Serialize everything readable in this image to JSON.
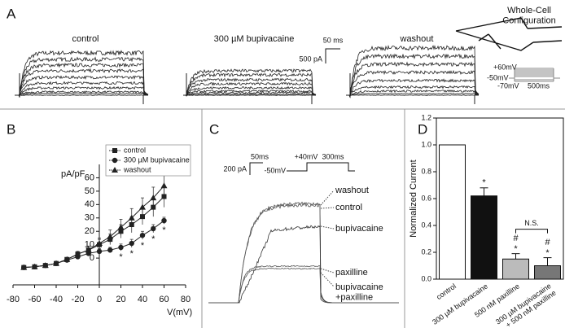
{
  "panel_a": {
    "letter": "A",
    "conditions": [
      "control",
      "300 µM bupivacaine",
      "washout"
    ],
    "scale_time": "50 ms",
    "scale_current": "500 pA",
    "config_label": "Whole-Cell\nConfiguration",
    "protocol_labels": [
      "+60mV",
      "-50mV",
      "-70mV",
      "500ms"
    ]
  },
  "panel_c": {
    "letter": "C",
    "scale_time": "50ms",
    "scale_current": "200 pA",
    "protocol_labels": [
      "+40mV",
      "-50mV",
      "300ms"
    ],
    "trace_labels": [
      "washout",
      "control",
      "bupivacaine",
      "paxilline",
      "bupivacaine\n+paxilline"
    ]
  },
  "chart_data": [
    {
      "type": "line",
      "panel": "B",
      "ylabel": "pA/pF",
      "xlabel": "V(mV)",
      "x": [
        -70,
        -60,
        -50,
        -40,
        -30,
        -20,
        -10,
        0,
        10,
        20,
        30,
        40,
        50,
        60
      ],
      "xlim": [
        -80,
        80
      ],
      "xticks": [
        -80,
        -60,
        -40,
        -20,
        0,
        20,
        40,
        60,
        80
      ],
      "ylim": [
        -20,
        70
      ],
      "yticks": [
        0,
        10,
        20,
        30,
        40,
        50,
        60
      ],
      "legend": "upper left",
      "series": [
        {
          "name": "control",
          "color": "#222222",
          "marker": "square",
          "values": [
            -7,
            -6.5,
            -5.5,
            -4,
            -1,
            3,
            6,
            10,
            14,
            20,
            25,
            31,
            38,
            46
          ],
          "errors": [
            0.5,
            0.5,
            0.5,
            0.8,
            1,
            2,
            3,
            4,
            4,
            5,
            6,
            6,
            7,
            8
          ]
        },
        {
          "name": "300 µM bupivacaine",
          "color": "#222222",
          "marker": "circle",
          "values": [
            -7,
            -6.5,
            -5.5,
            -4,
            -1.5,
            1,
            3.5,
            5,
            6,
            8,
            11,
            17,
            22,
            28
          ],
          "errors": [
            0.5,
            0.5,
            0.5,
            0.8,
            1,
            1.5,
            2,
            2,
            2,
            2.5,
            3,
            3,
            3,
            2.5
          ],
          "annotations": [
            null,
            null,
            null,
            null,
            null,
            null,
            null,
            null,
            null,
            "*",
            "*",
            "*",
            "*",
            "*"
          ]
        },
        {
          "name": "washout",
          "color": "#222222",
          "marker": "triangle",
          "values": [
            -7,
            -6.5,
            -5.5,
            -4,
            -1,
            3,
            6,
            11,
            16,
            23,
            30,
            38,
            45,
            54
          ],
          "errors": [
            0.5,
            0.5,
            0.5,
            0.8,
            1,
            2,
            3,
            4,
            5,
            6,
            7,
            7,
            8,
            8
          ]
        }
      ]
    },
    {
      "type": "bar",
      "panel": "D",
      "ylabel": "Normalized Current",
      "categories": [
        "control",
        "300 µM bupivacaine",
        "500 nM paxilline",
        "300 µM bupivacaine\n+ 500 nM paxilline"
      ],
      "values": [
        1.0,
        0.62,
        0.15,
        0.1
      ],
      "errors": [
        0,
        0.06,
        0.04,
        0.06
      ],
      "colors": [
        "#ffffff",
        "#111111",
        "#bbbbbb",
        "#777777"
      ],
      "annotations": [
        null,
        "*",
        "#\n*",
        "#\n*"
      ],
      "bracket_label": "N.S.",
      "ylim": [
        0,
        1.2
      ],
      "yticks": [
        {
          "value": 0,
          "label": "0.0"
        },
        0.2,
        0.4,
        0.6,
        0.8,
        {
          "value": 1,
          "label": "1.0"
        },
        1.2
      ]
    }
  ]
}
